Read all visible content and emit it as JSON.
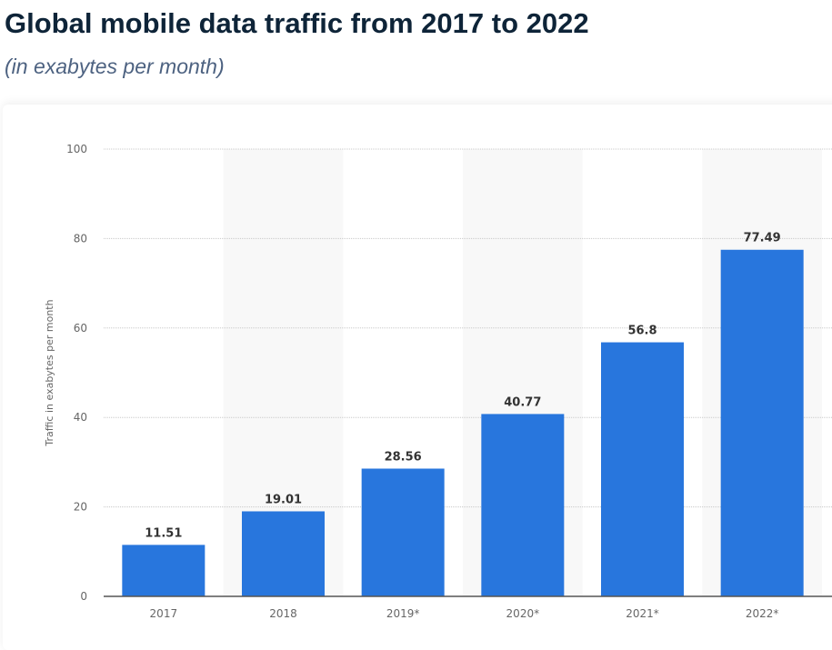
{
  "header": {
    "title": "Global mobile data traffic from 2017 to 2022",
    "subtitle": "(in exabytes per month)"
  },
  "chart_data": {
    "type": "bar",
    "categories": [
      "2017",
      "2018",
      "2019*",
      "2020*",
      "2021*",
      "2022*"
    ],
    "values": [
      11.51,
      19.01,
      28.56,
      40.77,
      56.8,
      77.49
    ],
    "data_labels": [
      "11.51",
      "19.01",
      "28.56",
      "40.77",
      "56.8",
      "77.49"
    ],
    "title": "Global mobile data traffic from 2017 to 2022",
    "subtitle": "(in exabytes per month)",
    "xlabel": "",
    "ylabel": "Traffic in exabytes per month",
    "ylim": [
      0,
      100
    ],
    "yticks": [
      0,
      20,
      40,
      60,
      80,
      100
    ],
    "grid": true,
    "bar_color": "#2876dd"
  }
}
